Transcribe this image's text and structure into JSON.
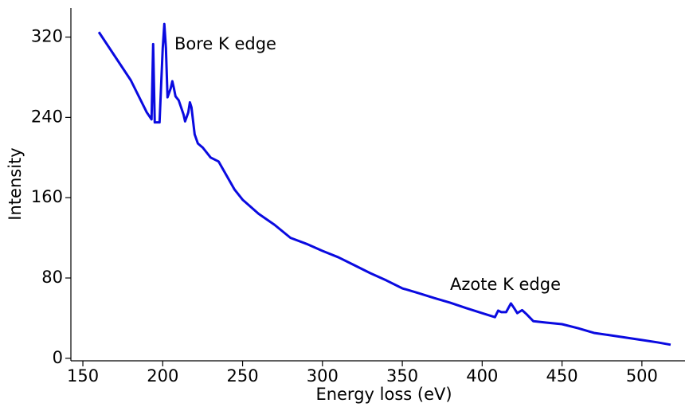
{
  "chart_data": {
    "type": "line",
    "x_label": "Energy loss (eV)",
    "y_label": "Intensity",
    "annotations": [
      "Bore K edge",
      "Azote K edge"
    ],
    "xlim": [
      142.5,
      527
    ],
    "ylim": [
      -2.5,
      349
    ],
    "xticks": [
      150,
      200,
      250,
      300,
      350,
      400,
      450,
      500
    ],
    "yticks": [
      0,
      80,
      160,
      240,
      320
    ],
    "series": [
      {
        "color": "#0a0ae0",
        "x": [
          160,
          170,
          180,
          190,
          193,
          194,
          195,
          198,
          200,
          201,
          202,
          203,
          205,
          206,
          207,
          208,
          210,
          213,
          214,
          216,
          217,
          218,
          220,
          222,
          225,
          230,
          235,
          240,
          245,
          250,
          260,
          270,
          280,
          290,
          300,
          310,
          320,
          330,
          340,
          350,
          360,
          370,
          380,
          390,
          400,
          408,
          410,
          412,
          415,
          418,
          420,
          422,
          425,
          428,
          432,
          440,
          450,
          460,
          470,
          480,
          490,
          500,
          510,
          518
        ],
        "values": [
          325,
          301,
          277,
          245,
          238,
          313,
          235,
          235,
          309,
          333,
          309,
          260,
          269,
          276,
          269,
          261,
          257,
          243,
          236,
          245,
          255,
          250,
          223,
          214,
          210,
          200,
          196,
          182,
          168,
          158,
          144,
          133,
          120,
          114,
          107,
          100.6,
          92.7,
          84.8,
          77.6,
          69.7,
          65,
          60,
          55.4,
          50,
          45,
          41,
          47.5,
          46,
          46,
          54.7,
          50,
          45,
          48,
          43.6,
          37,
          35.6,
          34,
          30,
          25.3,
          23,
          20.6,
          18.2,
          15.8,
          13.5
        ]
      }
    ]
  }
}
